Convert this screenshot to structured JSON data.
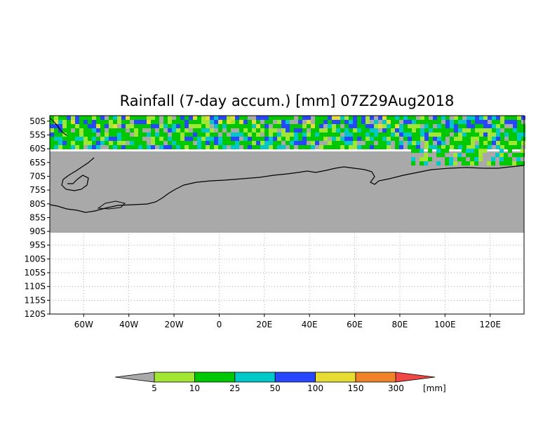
{
  "title": "Rainfall (7-day accum.) [mm] 07Z29Aug2018",
  "map": {
    "lat_labels": [
      "50S",
      "55S",
      "60S",
      "65S",
      "70S",
      "75S",
      "80S",
      "85S",
      "90S",
      "95S",
      "100S",
      "105S",
      "110S",
      "115S",
      "120S"
    ],
    "lon_labels": [
      "60W",
      "40W",
      "20W",
      "0",
      "20E",
      "40E",
      "60E",
      "80E",
      "100E",
      "120E"
    ],
    "lon_range": [
      -75,
      135
    ],
    "lat_range": [
      -120,
      -48
    ],
    "no_data_fill": "#a9a9a9"
  },
  "colorbar": {
    "unit": "[mm]",
    "tick_labels": [
      "5",
      "10",
      "25",
      "50",
      "100",
      "150",
      "300"
    ],
    "colors": [
      "#a0e632",
      "#00c800",
      "#00c8c8",
      "#2846ff",
      "#e6dc32",
      "#f08228",
      "#f04646"
    ],
    "below_color": "#a9a9a9"
  }
}
